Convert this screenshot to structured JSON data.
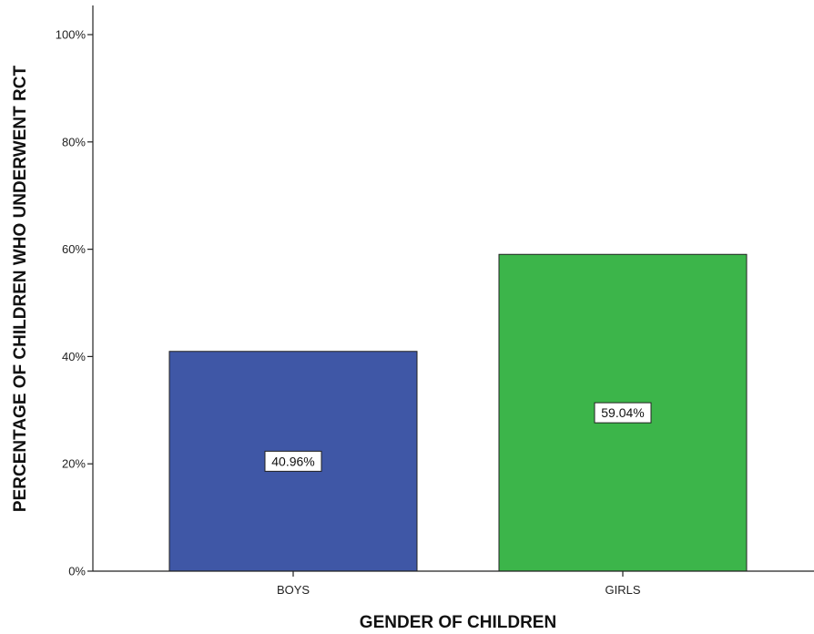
{
  "chart_data": {
    "type": "bar",
    "categories": [
      "BOYS",
      "GIRLS"
    ],
    "values": [
      40.96,
      59.04
    ],
    "data_labels": [
      "40.96%",
      "59.04%"
    ],
    "bar_colors": [
      "#3F57A6",
      "#3CB54A"
    ],
    "xlabel": "GENDER OF CHILDREN",
    "ylabel": "PERCENTAGE OF CHILDREN WHO UNDERWENT RCT",
    "ylim": [
      0,
      100
    ],
    "yticks": [
      0,
      20,
      40,
      60,
      80,
      100
    ],
    "ytick_labels": [
      "0%",
      "20%",
      "40%",
      "60%",
      "80%",
      "100%"
    ],
    "grid": false,
    "legend": "none"
  }
}
